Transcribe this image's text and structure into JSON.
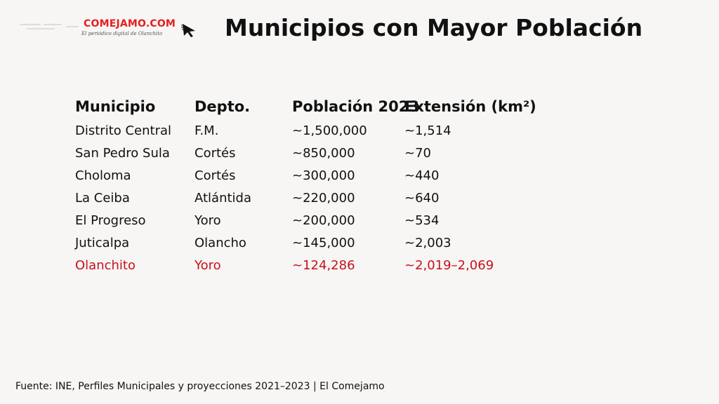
{
  "logo": {
    "brand": "COMEJAMO.COM",
    "tagline": "El periódico digital de Olanchito",
    "icon": "cursor-arrow-icon",
    "brand_color": "#e51f1f"
  },
  "title": "Municipios con Mayor Población",
  "table": {
    "headers": [
      "Municipio",
      "Depto.",
      "Población 2023",
      "Extensión (km²)"
    ],
    "rows": [
      [
        "Distrito Central",
        "F.M.",
        "~1,500,000",
        "~1,514"
      ],
      [
        "San Pedro Sula",
        "Cortés",
        "~850,000",
        "~70"
      ],
      [
        "Choloma",
        "Cortés",
        "~300,000",
        "~440"
      ],
      [
        "La Ceiba",
        "Atlántida",
        "~220,000",
        "~640"
      ],
      [
        "El Progreso",
        "Yoro",
        "~200,000",
        "~534"
      ],
      [
        "Juticalpa",
        "Olancho",
        "~145,000",
        "~2,003"
      ],
      [
        "Olanchito",
        "Yoro",
        "~124,286",
        "~2,019–2,069"
      ]
    ],
    "highlight_color": "#c8101a"
  },
  "source": "Fuente: INE, Perfiles Municipales y proyecciones 2021–2023 | El Comejamo"
}
